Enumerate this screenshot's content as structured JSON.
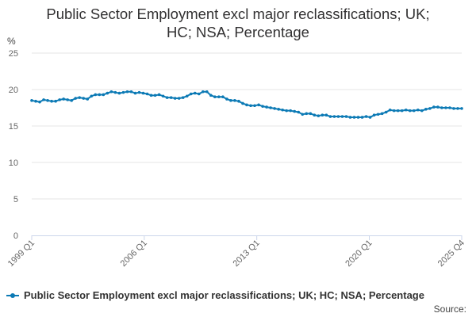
{
  "title": "Public Sector Employment excl major reclassifications; UK; HC; NSA; Percentage",
  "title_lines": [
    "Public Sector Employment excl major reclassifications; UK;",
    "HC; NSA; Percentage"
  ],
  "unit_label": "%",
  "source_label": "Source:",
  "colors": {
    "series": "#0c7ab5",
    "grid": "#e6e6e6",
    "axis": "#ccd6eb"
  },
  "chart_data": {
    "type": "line",
    "title": "Public Sector Employment excl major reclassifications; UK; HC; NSA; Percentage",
    "ylabel": "%",
    "xlabel": "",
    "ylim": [
      0,
      25
    ],
    "yticks": [
      0,
      5,
      10,
      15,
      20,
      25
    ],
    "x_range": [
      "1999 Q1",
      "2025 Q4"
    ],
    "xticks": [
      "1999 Q1",
      "2006 Q1",
      "2013 Q1",
      "2020 Q1",
      "2025 Q4"
    ],
    "grid": true,
    "legend": "bottom-left",
    "series": [
      {
        "name": "Public Sector Employment excl major reclassifications; UK; HC; NSA; Percentage",
        "values": [
          18.5,
          18.4,
          18.3,
          18.6,
          18.5,
          18.4,
          18.4,
          18.6,
          18.7,
          18.6,
          18.5,
          18.8,
          18.9,
          18.8,
          18.7,
          19.1,
          19.3,
          19.3,
          19.3,
          19.5,
          19.7,
          19.6,
          19.5,
          19.6,
          19.7,
          19.7,
          19.5,
          19.6,
          19.5,
          19.4,
          19.2,
          19.2,
          19.3,
          19.1,
          18.9,
          18.9,
          18.8,
          18.8,
          18.9,
          19.1,
          19.4,
          19.5,
          19.4,
          19.7,
          19.7,
          19.2,
          19.0,
          19.0,
          19.0,
          18.7,
          18.5,
          18.5,
          18.4,
          18.1,
          17.9,
          17.8,
          17.8,
          17.9,
          17.7,
          17.6,
          17.5,
          17.4,
          17.3,
          17.2,
          17.1,
          17.1,
          17.0,
          16.9,
          16.6,
          16.7,
          16.7,
          16.5,
          16.4,
          16.5,
          16.5,
          16.3,
          16.3,
          16.3,
          16.3,
          16.3,
          16.2,
          16.2,
          16.2,
          16.2,
          16.3,
          16.2,
          16.5,
          16.6,
          16.7,
          16.9,
          17.2,
          17.1,
          17.1,
          17.1,
          17.2,
          17.1,
          17.1,
          17.2,
          17.1,
          17.3,
          17.4,
          17.6,
          17.6,
          17.5,
          17.5,
          17.5,
          17.4,
          17.4,
          17.4
        ]
      }
    ]
  }
}
